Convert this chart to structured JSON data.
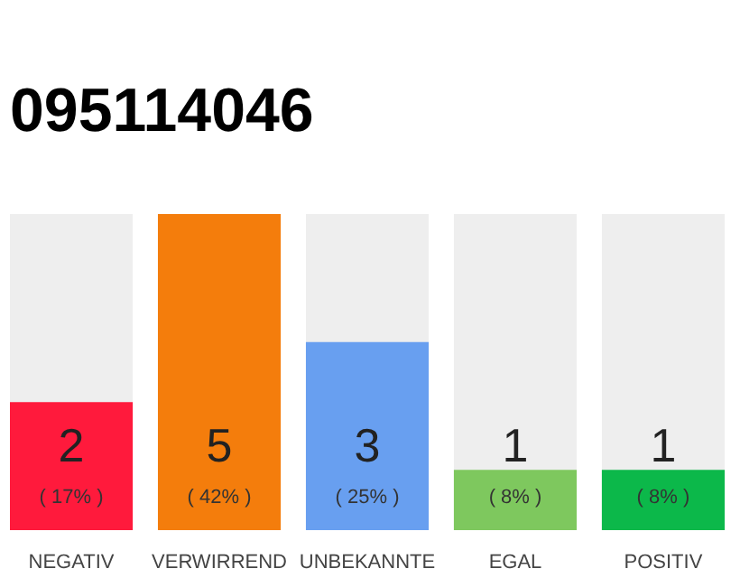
{
  "chart_data": {
    "type": "bar",
    "title": "095114046",
    "categories": [
      "NEGATIV",
      "VERWIRREND",
      "UNBEKANNTE",
      "EGAL",
      "POSITIV"
    ],
    "values": [
      17,
      42,
      25,
      8,
      8
    ],
    "colors": [
      "#ff1a3c",
      "#f47d0c",
      "#689ff0",
      "#7ec85e",
      "#0cb84a"
    ],
    "value_labels": [
      "( 17% )",
      "( 42% )",
      "( 25% )",
      "( 8% )",
      "( 8% )"
    ],
    "annotations": [
      "2",
      "5",
      "3",
      "1",
      "1"
    ],
    "tick_labels": "x"
  }
}
